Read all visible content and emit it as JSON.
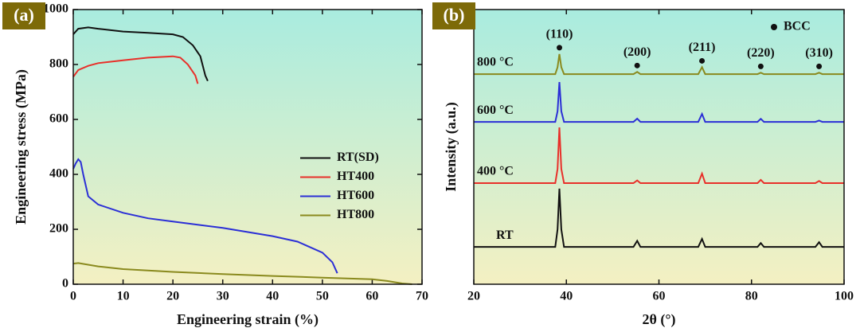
{
  "chart_data": [
    {
      "type": "line",
      "panel": "(a)",
      "xlabel": "Engineering strain (%)",
      "ylabel": "Engineering stress (MPa)",
      "xlim": [
        0,
        70
      ],
      "xticks": [
        0,
        10,
        20,
        30,
        40,
        50,
        60,
        70
      ],
      "ylim": [
        0,
        1000
      ],
      "yticks": [
        0,
        200,
        400,
        600,
        800,
        1000
      ],
      "legend": "center right",
      "series": [
        {
          "name": "RT(SD)",
          "color": "#111111",
          "x": [
            0,
            1,
            3,
            5,
            10,
            15,
            20,
            22,
            24,
            25.5,
            26.5,
            27
          ],
          "values": [
            910,
            930,
            935,
            930,
            920,
            915,
            910,
            900,
            870,
            830,
            760,
            740
          ]
        },
        {
          "name": "HT400",
          "color": "#e8302a",
          "x": [
            0,
            1,
            3,
            5,
            10,
            15,
            20,
            21.5,
            23,
            24.5,
            25
          ],
          "values": [
            755,
            780,
            795,
            805,
            815,
            825,
            830,
            825,
            800,
            760,
            730
          ]
        },
        {
          "name": "HT600",
          "color": "#2b2fd6",
          "x": [
            0,
            0.5,
            1,
            1.5,
            2,
            3,
            5,
            10,
            15,
            20,
            30,
            40,
            45,
            50,
            52,
            53
          ],
          "values": [
            420,
            440,
            455,
            445,
            400,
            320,
            290,
            260,
            240,
            228,
            205,
            175,
            155,
            115,
            80,
            40
          ]
        },
        {
          "name": "HT800",
          "color": "#8a8a1e",
          "x": [
            0,
            1,
            5,
            10,
            20,
            30,
            40,
            50,
            60,
            63,
            66,
            68
          ],
          "values": [
            75,
            77,
            65,
            55,
            45,
            37,
            30,
            24,
            18,
            12,
            3,
            0
          ]
        }
      ]
    },
    {
      "type": "line",
      "panel": "(b)",
      "xlabel": "2θ (°)",
      "ylabel": "Intensity (a.u.)",
      "xlim": [
        20,
        100
      ],
      "xticks": [
        20,
        40,
        60,
        80,
        100
      ],
      "ylim": [
        0,
        100
      ],
      "legend": "inline",
      "marker_label": "BCC",
      "x": [
        20,
        37.6,
        38.1,
        38.5,
        38.9,
        39.5,
        54.5,
        55.3,
        56,
        68.5,
        69.3,
        70,
        81.3,
        82,
        82.7,
        93.8,
        94.6,
        95.3,
        100
      ],
      "annotations": [
        {
          "text": "(110)",
          "x": 38.5
        },
        {
          "text": "(200)",
          "x": 55.3
        },
        {
          "text": "(211)",
          "x": 69.3
        },
        {
          "text": "(220)",
          "x": 82
        },
        {
          "text": "(310)",
          "x": 94.6
        }
      ],
      "series": [
        {
          "name": "800 °C",
          "color": "#8a8a1e",
          "values": [
            76.5,
            76.5,
            79,
            83.8,
            79,
            76.5,
            76.5,
            77.3,
            76.5,
            76.5,
            79,
            76.5,
            76.5,
            77,
            76.5,
            76.5,
            77,
            76.5,
            76.5
          ]
        },
        {
          "name": "600 °C",
          "color": "#2b2fd6",
          "values": [
            59.1,
            59.1,
            63,
            73.6,
            63,
            59.1,
            59.1,
            60.3,
            59.1,
            59.1,
            62,
            59.1,
            59.1,
            60.2,
            59.1,
            59.1,
            59.6,
            59.1,
            59.1
          ]
        },
        {
          "name": "400 °C",
          "color": "#e8302a",
          "values": [
            36.8,
            36.8,
            42,
            57.1,
            42,
            36.8,
            36.8,
            37.8,
            36.8,
            36.8,
            40.3,
            36.8,
            36.8,
            38,
            36.8,
            36.8,
            37.6,
            36.8,
            36.8
          ]
        },
        {
          "name": "RT",
          "color": "#111111",
          "values": [
            13.6,
            13.6,
            20,
            34.8,
            20,
            13.6,
            13.6,
            15.8,
            13.6,
            13.6,
            16.5,
            13.6,
            13.6,
            15,
            13.6,
            13.6,
            15.3,
            13.6,
            13.6
          ]
        }
      ]
    }
  ]
}
